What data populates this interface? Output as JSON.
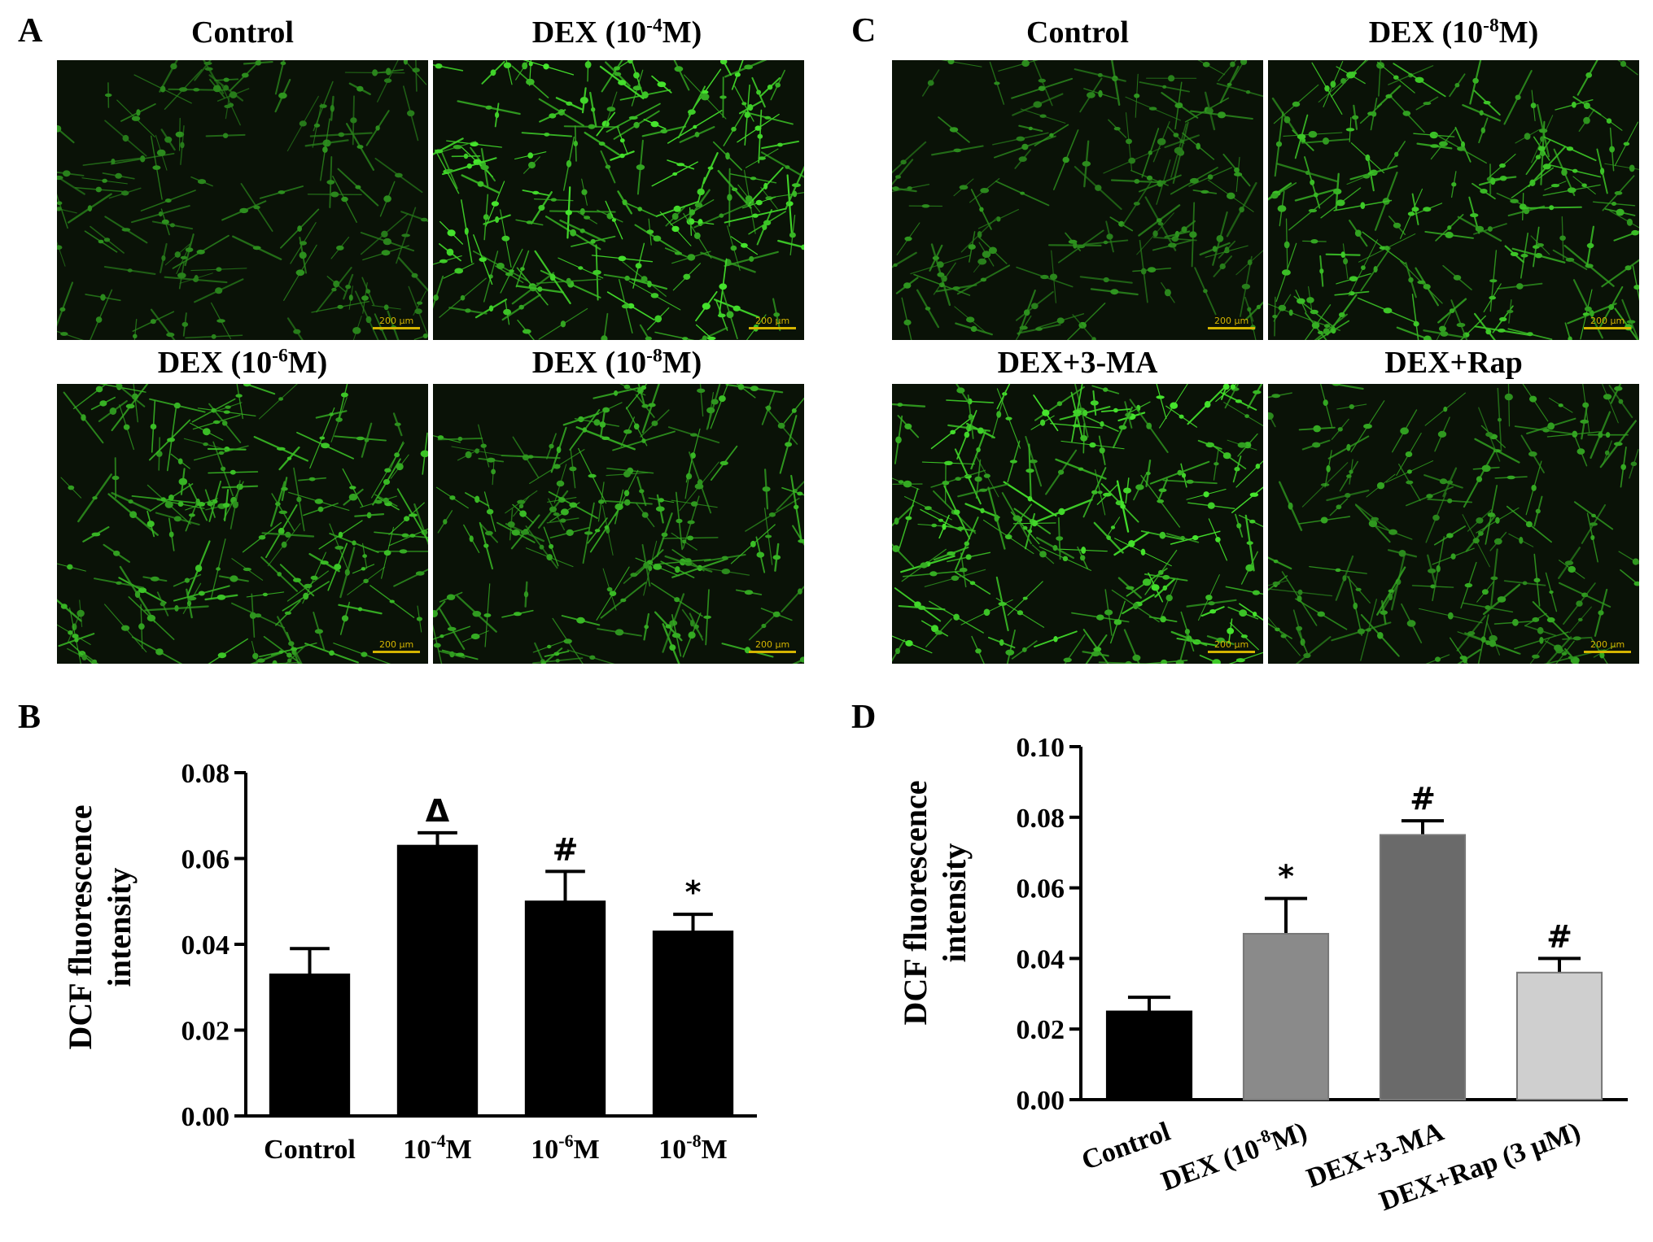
{
  "panels": {
    "A": {
      "letter": "A",
      "titles": [
        "Control",
        "DEX (10",
        "-4",
        "M)",
        "DEX (10",
        "-6",
        "M)",
        "DEX (10",
        "-8",
        "M)"
      ],
      "scale_label": "200 μm"
    },
    "C": {
      "letter": "C",
      "titles": [
        "Control",
        "DEX (10",
        "-8",
        "M)",
        "DEX+3-MA",
        "DEX+Rap"
      ],
      "scale_label": "200 μm"
    },
    "B": {
      "letter": "B"
    },
    "D": {
      "letter": "D"
    }
  },
  "colors": {
    "bar_black": "#000000",
    "bar_gray1": "#8a8a8a",
    "bar_gray2": "#6a6a6a",
    "bar_gray3": "#cfcfcf",
    "fluor": "#3fd23a"
  },
  "chart_data": [
    {
      "id": "B",
      "type": "bar",
      "ylabel": "DCF fluorescence intensity",
      "ylabel_lines": [
        "DCF fluorescence",
        "intensity"
      ],
      "ylim": [
        0,
        0.08
      ],
      "yticks": [
        "0.00",
        "0.02",
        "0.04",
        "0.06",
        "0.08"
      ],
      "categories": [
        {
          "base": "Control",
          "sup": "",
          "tail": ""
        },
        {
          "base": "10",
          "sup": "-4",
          "tail": "M"
        },
        {
          "base": "10",
          "sup": "-6",
          "tail": "M"
        },
        {
          "base": "10",
          "sup": "-8",
          "tail": "M"
        }
      ],
      "values": [
        0.033,
        0.063,
        0.05,
        0.043
      ],
      "errors": [
        0.006,
        0.003,
        0.007,
        0.004
      ],
      "annotations": [
        "",
        "Δ",
        "#",
        "*"
      ],
      "bar_colors": [
        "#000000",
        "#000000",
        "#000000",
        "#000000"
      ]
    },
    {
      "id": "D",
      "type": "bar",
      "ylabel": "DCF fluorescence intensity",
      "ylabel_lines": [
        "DCF fluorescence",
        "intensity"
      ],
      "ylim": [
        0,
        0.1
      ],
      "yticks": [
        "0.00",
        "0.02",
        "0.04",
        "0.06",
        "0.08",
        "0.10"
      ],
      "categories": [
        {
          "base": "Control",
          "sup": "",
          "tail": ""
        },
        {
          "base": "DEX (10",
          "sup": "-8",
          "tail": "M)"
        },
        {
          "base": "DEX+3-MA",
          "sup": "",
          "tail": ""
        },
        {
          "base": "DEX+Rap (3 μM)",
          "sup": "",
          "tail": ""
        }
      ],
      "values": [
        0.025,
        0.047,
        0.075,
        0.036
      ],
      "errors": [
        0.004,
        0.01,
        0.004,
        0.004
      ],
      "annotations": [
        "",
        "*",
        "#",
        "#"
      ],
      "bar_colors": [
        "#000000",
        "#8a8a8a",
        "#6a6a6a",
        "#cfcfcf"
      ]
    }
  ]
}
